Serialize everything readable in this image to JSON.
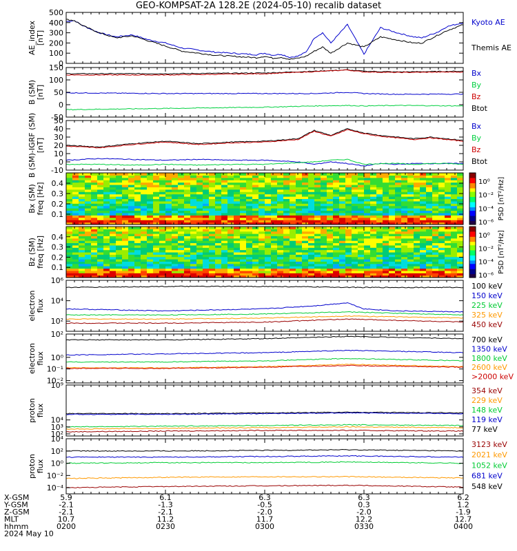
{
  "title": "GEO-KOMPSAT-2A 128.2E (2024-05-10) recalib dataset",
  "colors": {
    "black": "#000000",
    "blue": "#0000cc",
    "green": "#00cc33",
    "red": "#cc0000",
    "orange": "#ff9900",
    "darkred": "#990000",
    "lime": "#00d040"
  },
  "chart_data": [
    {
      "type": "line",
      "id": "ae",
      "ylabel": "AE_index\n[nT]",
      "ylim": [
        0,
        500
      ],
      "yticks": [
        "0",
        "100",
        "200",
        "300",
        "400",
        "500"
      ],
      "legend": [
        {
          "text": "Kyoto AE",
          "color": "blue"
        },
        {
          "text": "Themis AE",
          "color": "black"
        }
      ],
      "series": [
        {
          "name": "Kyoto AE",
          "color": "blue",
          "x": [
            0,
            5,
            10,
            20,
            30,
            40,
            50,
            60,
            70,
            80,
            90,
            100,
            110,
            115,
            120,
            125,
            130,
            135,
            140,
            145,
            150,
            155,
            160,
            170,
            180,
            190,
            200,
            210,
            215,
            220,
            225,
            230,
            240
          ],
          "values": [
            410,
            420,
            370,
            300,
            260,
            280,
            230,
            200,
            150,
            130,
            110,
            100,
            90,
            85,
            100,
            80,
            90,
            60,
            70,
            110,
            250,
            300,
            200,
            380,
            90,
            350,
            300,
            260,
            250,
            280,
            310,
            360,
            400
          ]
        },
        {
          "name": "Themis AE",
          "color": "black",
          "x": [
            0,
            5,
            10,
            20,
            30,
            40,
            50,
            60,
            70,
            80,
            90,
            100,
            110,
            115,
            120,
            125,
            130,
            135,
            140,
            145,
            150,
            155,
            160,
            170,
            180,
            190,
            200,
            210,
            215,
            220,
            225,
            230,
            240
          ],
          "values": [
            430,
            420,
            370,
            300,
            250,
            270,
            220,
            170,
            120,
            100,
            80,
            70,
            60,
            55,
            70,
            50,
            60,
            40,
            50,
            70,
            120,
            160,
            100,
            200,
            160,
            260,
            230,
            200,
            200,
            240,
            280,
            320,
            380
          ]
        }
      ]
    },
    {
      "type": "line",
      "id": "bsm",
      "ylabel": "B (SM)\n[nT]",
      "ylim": [
        -50,
        150
      ],
      "yticks": [
        "-50",
        "0",
        "50",
        "100",
        "150"
      ],
      "legend": [
        {
          "text": "Bx",
          "color": "blue"
        },
        {
          "text": "By",
          "color": "lime"
        },
        {
          "text": "Bz",
          "color": "red"
        },
        {
          "text": "Btot",
          "color": "black"
        }
      ],
      "series": [
        {
          "name": "Btot",
          "color": "black",
          "x": [
            0,
            60,
            120,
            150,
            170,
            180,
            200,
            240
          ],
          "values": [
            125,
            125,
            128,
            135,
            140,
            135,
            132,
            135
          ]
        },
        {
          "name": "Bz",
          "color": "red",
          "x": [
            0,
            60,
            120,
            150,
            170,
            180,
            200,
            240
          ],
          "values": [
            120,
            120,
            125,
            133,
            140,
            132,
            130,
            132
          ]
        },
        {
          "name": "Bx",
          "color": "blue",
          "x": [
            0,
            60,
            120,
            150,
            170,
            180,
            200,
            240
          ],
          "values": [
            48,
            45,
            45,
            45,
            50,
            45,
            42,
            43
          ]
        },
        {
          "name": "By",
          "color": "lime",
          "x": [
            0,
            60,
            120,
            150,
            170,
            180,
            200,
            240
          ],
          "values": [
            -20,
            -15,
            -10,
            -5,
            -3,
            -5,
            -3,
            -5
          ]
        }
      ]
    },
    {
      "type": "line",
      "id": "dbsm",
      "ylabel": "B (SM)-IGRF (SM)\n[nT]",
      "ylim": [
        -10,
        50
      ],
      "yticks": [
        "-10",
        "0",
        "10",
        "20",
        "30",
        "40",
        "50"
      ],
      "legend": [
        {
          "text": "Bx",
          "color": "blue"
        },
        {
          "text": "By",
          "color": "lime"
        },
        {
          "text": "Bz",
          "color": "red"
        },
        {
          "text": "Btot",
          "color": "black"
        }
      ],
      "series": [
        {
          "name": "Btot",
          "color": "black",
          "x": [
            0,
            20,
            40,
            60,
            80,
            100,
            120,
            140,
            150,
            160,
            170,
            180,
            190,
            200,
            210,
            220,
            230,
            240
          ],
          "values": [
            20,
            18,
            22,
            25,
            22,
            24,
            25,
            28,
            38,
            32,
            40,
            35,
            32,
            30,
            28,
            30,
            28,
            26
          ]
        },
        {
          "name": "Bz",
          "color": "red",
          "x": [
            0,
            20,
            40,
            60,
            80,
            100,
            120,
            140,
            150,
            160,
            170,
            180,
            190,
            200,
            210,
            220,
            230,
            240
          ],
          "values": [
            19,
            17,
            21,
            24,
            21,
            23,
            24,
            27,
            37,
            31,
            39,
            34,
            31,
            29,
            27,
            29,
            27,
            25
          ]
        },
        {
          "name": "Bx",
          "color": "blue",
          "x": [
            0,
            20,
            40,
            60,
            80,
            100,
            120,
            140,
            150,
            160,
            170,
            180,
            190,
            200,
            210,
            220,
            230,
            240
          ],
          "values": [
            2,
            4,
            3,
            2,
            3,
            2,
            2,
            0,
            -3,
            0,
            -2,
            -5,
            -2,
            -3,
            -2,
            -2,
            -2,
            -2
          ]
        },
        {
          "name": "By",
          "color": "lime",
          "x": [
            0,
            20,
            40,
            60,
            80,
            100,
            120,
            140,
            150,
            160,
            170,
            180,
            190,
            200,
            210,
            220,
            230,
            240
          ],
          "values": [
            -3,
            -3,
            -4,
            -3,
            -4,
            -3,
            -3,
            -1,
            0,
            2,
            3,
            -3,
            -2,
            -2,
            -3,
            -2,
            -2,
            -3
          ]
        }
      ]
    },
    {
      "type": "heatmap",
      "id": "bxspec",
      "ylabel": "Bx (SM)\nfreq [Hz]",
      "ylim": [
        0,
        0.5
      ],
      "yticks": [
        "0.1",
        "0.2",
        "0.3",
        "0.4"
      ],
      "colorbar": {
        "label": "PSD [nT²/Hz]",
        "ticks": [
          "10⁰",
          "10⁻²",
          "10⁻⁴",
          "10⁻⁶"
        ]
      }
    },
    {
      "type": "heatmap",
      "id": "bzspec",
      "ylabel": "Bz (SM)\nfreq [Hz]",
      "ylim": [
        0,
        0.5
      ],
      "yticks": [
        "0.1",
        "0.2",
        "0.3",
        "0.4"
      ],
      "colorbar": {
        "label": "PSD [nT²/Hz]",
        "ticks": [
          "10⁰",
          "10⁻²",
          "10⁻⁴",
          "10⁻⁶"
        ]
      }
    },
    {
      "type": "line",
      "id": "eflux1",
      "log": true,
      "ylabel": "electron\nflux",
      "ylim": [
        1,
        6
      ],
      "yticks": [
        "10²",
        "10⁴",
        "10⁶"
      ],
      "ytickvals": [
        2,
        4,
        6
      ],
      "legend": [
        {
          "text": "100 keV",
          "color": "black"
        },
        {
          "text": "150 keV",
          "color": "blue"
        },
        {
          "text": "225 keV",
          "color": "green"
        },
        {
          "text": "325 keV",
          "color": "orange"
        },
        {
          "text": "450 keV",
          "color": "darkred"
        }
      ],
      "series": [
        {
          "name": "100 keV",
          "color": "black",
          "x": [
            0,
            60,
            120,
            180,
            240
          ],
          "values": [
            5.3,
            5.4,
            5.4,
            5.3,
            5.3
          ]
        },
        {
          "name": "150 keV",
          "color": "blue",
          "x": [
            0,
            60,
            120,
            150,
            170,
            180,
            200,
            240
          ],
          "values": [
            3.2,
            3.0,
            3.2,
            3.5,
            3.8,
            3.2,
            3.0,
            2.9
          ]
        },
        {
          "name": "225 keV",
          "color": "green",
          "x": [
            0,
            60,
            120,
            170,
            240
          ],
          "values": [
            2.6,
            2.6,
            2.7,
            2.9,
            2.6
          ]
        },
        {
          "name": "325 keV",
          "color": "orange",
          "x": [
            0,
            60,
            120,
            170,
            240
          ],
          "values": [
            2.2,
            2.2,
            2.3,
            2.5,
            2.3
          ]
        },
        {
          "name": "450 keV",
          "color": "darkred",
          "x": [
            0,
            60,
            120,
            170,
            240
          ],
          "values": [
            1.8,
            1.8,
            1.9,
            2.2,
            1.9
          ]
        }
      ]
    },
    {
      "type": "line",
      "id": "eflux2",
      "log": true,
      "ylabel": "electron\nflux",
      "ylim": [
        -2.2,
        2
      ],
      "yticks": [
        "10⁻²",
        "10⁻¹",
        "10⁰",
        "10²"
      ],
      "ytickvals": [
        -2,
        -1,
        0,
        2
      ],
      "legend": [
        {
          "text": "700 keV",
          "color": "black"
        },
        {
          "text": "1350 keV",
          "color": "blue"
        },
        {
          "text": "1800 keV",
          "color": "green"
        },
        {
          "text": "2600 keV",
          "color": "orange"
        },
        {
          "text": ">2000 keV",
          "color": "red"
        }
      ],
      "series": [
        {
          "name": "700 keV",
          "color": "black",
          "x": [
            0,
            60,
            120,
            170,
            240
          ],
          "values": [
            1.5,
            1.5,
            1.6,
            1.8,
            1.6
          ]
        },
        {
          "name": "1350 keV",
          "color": "blue",
          "x": [
            0,
            60,
            120,
            170,
            240
          ],
          "values": [
            0.2,
            0.3,
            0.4,
            0.6,
            0.4
          ]
        },
        {
          "name": "1800 keV",
          "color": "green",
          "x": [
            0,
            60,
            120,
            170,
            240
          ],
          "values": [
            -0.4,
            -0.4,
            -0.3,
            -0.1,
            -0.3
          ]
        },
        {
          "name": "2600 keV",
          "color": "orange",
          "x": [
            0,
            60,
            120,
            170,
            240
          ],
          "values": [
            -0.9,
            -0.9,
            -0.8,
            -0.6,
            -0.8
          ]
        },
        {
          "name": ">2000 keV",
          "color": "red",
          "x": [
            0,
            60,
            120,
            170,
            240
          ],
          "values": [
            -0.95,
            -0.95,
            -0.85,
            -0.7,
            -0.85
          ]
        }
      ]
    },
    {
      "type": "line",
      "id": "pflux1",
      "log": true,
      "ylabel": "proton\nflux",
      "ylim": [
        1.7,
        9
      ],
      "yticks": [
        "10²",
        "10³",
        "10⁴",
        "10⁹"
      ],
      "ytickvals": [
        2,
        3,
        4,
        9
      ],
      "legend": [
        {
          "text": "354 keV",
          "color": "darkred"
        },
        {
          "text": "229 keV",
          "color": "orange"
        },
        {
          "text": "148 keV",
          "color": "green"
        },
        {
          "text": "119 keV",
          "color": "blue"
        },
        {
          "text": "77 keV",
          "color": "black"
        }
      ],
      "series": [
        {
          "name": "77 keV",
          "color": "black",
          "x": [
            0,
            60,
            120,
            170,
            240
          ],
          "values": [
            4.9,
            4.9,
            5.0,
            5.1,
            5.0
          ]
        },
        {
          "name": "119 keV",
          "color": "blue",
          "x": [
            0,
            60,
            120,
            170,
            240
          ],
          "values": [
            4.8,
            4.8,
            4.9,
            5.0,
            4.9
          ]
        },
        {
          "name": "148 keV",
          "color": "green",
          "x": [
            0,
            60,
            120,
            170,
            240
          ],
          "values": [
            3.0,
            3.1,
            3.2,
            3.3,
            3.2
          ]
        },
        {
          "name": "229 keV",
          "color": "orange",
          "x": [
            0,
            60,
            120,
            170,
            240
          ],
          "values": [
            2.7,
            2.8,
            2.9,
            3.0,
            2.9
          ]
        },
        {
          "name": "354 keV",
          "color": "darkred",
          "x": [
            0,
            60,
            120,
            170,
            240
          ],
          "values": [
            2.3,
            2.4,
            2.5,
            2.5,
            2.4
          ]
        }
      ]
    },
    {
      "type": "line",
      "id": "pflux2",
      "log": true,
      "ylabel": "proton\nflux",
      "ylim": [
        -5,
        4
      ],
      "yticks": [
        "10⁻⁴",
        "10⁻²",
        "10⁰",
        "10²",
        "10⁴"
      ],
      "ytickvals": [
        -4,
        -2,
        0,
        2,
        4
      ],
      "legend": [
        {
          "text": "3123 keV",
          "color": "darkred"
        },
        {
          "text": "2021 keV",
          "color": "orange"
        },
        {
          "text": "1052 keV",
          "color": "green"
        },
        {
          "text": "681 keV",
          "color": "blue"
        },
        {
          "text": "548 keV",
          "color": "black"
        }
      ],
      "series": [
        {
          "name": "548 keV",
          "color": "black",
          "x": [
            0,
            60,
            120,
            170,
            240
          ],
          "values": [
            2.0,
            2.0,
            2.1,
            2.2,
            2.0
          ]
        },
        {
          "name": "681 keV",
          "color": "blue",
          "x": [
            0,
            60,
            120,
            170,
            240
          ],
          "values": [
            1.0,
            1.0,
            1.1,
            1.2,
            1.0
          ]
        },
        {
          "name": "1052 keV",
          "color": "green",
          "x": [
            0,
            60,
            120,
            170,
            240
          ],
          "values": [
            0.0,
            0.1,
            0.1,
            0.2,
            0.0
          ]
        },
        {
          "name": "2021 keV",
          "color": "orange",
          "x": [
            0,
            60,
            120,
            170,
            240
          ],
          "values": [
            -2.5,
            -2.3,
            -2.2,
            -2.2,
            -2.4
          ]
        },
        {
          "name": "3123 keV",
          "color": "darkred",
          "x": [
            0,
            60,
            120,
            170,
            240
          ],
          "values": [
            -4.0,
            -3.8,
            -3.7,
            -3.6,
            -3.9
          ]
        }
      ]
    }
  ],
  "footer": {
    "rowlabels": [
      "X-GSM",
      "Y-GSM",
      "Z-GSM",
      "MLT",
      "hhmm",
      "2024 May 10"
    ],
    "columns": [
      {
        "values": [
          "5.9",
          "-2.1",
          "-2.1",
          "10.7",
          "0200"
        ]
      },
      {
        "values": [
          "6.1",
          "-1.3",
          "-2.1",
          "11.2",
          "0230"
        ]
      },
      {
        "values": [
          "6.3",
          "-0.5",
          "-2.0",
          "11.7",
          "0300"
        ]
      },
      {
        "values": [
          "6.3",
          "0.3",
          "-2.0",
          "12.2",
          "0330"
        ]
      },
      {
        "values": [
          "6.2",
          "1.2",
          "-1.9",
          "12.7",
          "0400"
        ]
      }
    ]
  }
}
